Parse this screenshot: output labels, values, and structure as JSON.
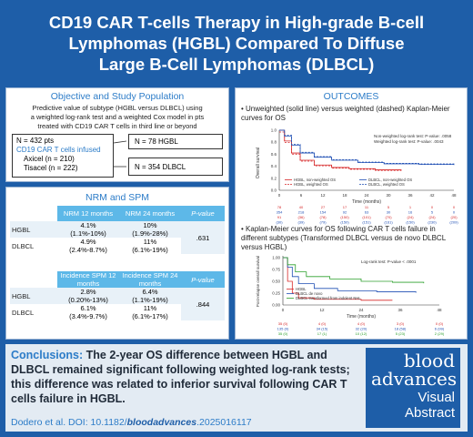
{
  "title": {
    "line1": "CD19 CAR T-cells Therapy in High-grade B-cell",
    "line2": "Lymphomas (HGBL) Compared To Diffuse",
    "line3": "Large B-Cell Lymphomas (DLBCL)"
  },
  "objective": {
    "heading": "Objective and Study Population",
    "text1": "Predictive value of subtype (HGBL versus DLBCL) using",
    "text2": "a weighted log-rank test and a weighted Cox model in pts",
    "text3": "treated with CD19 CAR T cells in third line or beyond",
    "n_total": "N = 432 pts",
    "infused_label": "CD19 CAR T cells infused",
    "axicel": "Axicel (n = 210)",
    "tisacel": "Tisacel (n = 222)",
    "n_hgbl": "N = 78 HGBL",
    "n_dlbcl": "N = 354 DLBCL"
  },
  "nrm_spm": {
    "heading": "NRM and SPM",
    "nrm_headers": [
      "NRM 12 months",
      "NRM 24 months",
      "P-value"
    ],
    "nrm_rows": [
      {
        "label": "HGBL",
        "v12": "4.1%",
        "ci12": "(1.1%-10%)",
        "v24": "10%",
        "ci24": "(1.9%-28%)",
        "p": ".631"
      },
      {
        "label": "DLBCL",
        "v12": "4.9%",
        "ci12": "(2.4%-8.7%)",
        "v24": "11%",
        "ci24": "(6.1%-19%)",
        "p": ""
      }
    ],
    "spm_headers": [
      "Incidence SPM 12 months",
      "Incidence SPM 24 months",
      "P-value"
    ],
    "spm_rows": [
      {
        "label": "HGBL",
        "v12": "2.8%",
        "ci12": "(0.20%-13%)",
        "v24": "6.4%",
        "ci24": "(1.1%-19%)",
        "p": ".844"
      },
      {
        "label": "DLBCL",
        "v12": "6.1%",
        "ci12": "(3.4%-9.7%)",
        "v24": "11%",
        "ci24": "(6.1%-17%)",
        "p": ""
      }
    ]
  },
  "outcomes": {
    "heading": "OUTCOMES",
    "bullet1": "Unweighted (solid line) versus weighted (dashed) Kaplan-Meier curves for OS",
    "bullet2": "Kaplan-Meier curves for OS following CAR T cells failure in different subtypes (Transformed DLBCL versus de novo DLBCL versus HGBL)",
    "plot1_note1": "Non-weighted log-rank test: P-value: .0058",
    "plot1_note2": "Weighted log-rank test: P-value: .0043",
    "plot1_ylabel": "Overall survival",
    "plot1_xlabel": "Time (months)",
    "plot1_xticks": [
      "0",
      "6",
      "12",
      "18",
      "24",
      "30",
      "36",
      "42",
      "48"
    ],
    "plot1_yticks": [
      "0.0",
      "0.2",
      "0.4",
      "0.6",
      "0.8",
      "1.0"
    ],
    "plot1_legend": [
      "HGBL, non-weighted OS",
      "DLBCL, non-weighted OS",
      "HGBL, weighted OS",
      "DLBCL, weighted OS"
    ],
    "plot1_risk_rows": [
      [
        "78",
        "40",
        "27",
        "17",
        "11",
        "5",
        "1",
        "0",
        "0"
      ],
      [
        "354",
        "218",
        "154",
        "92",
        "63",
        "30",
        "16",
        "5",
        "0"
      ],
      [
        "91",
        "(36)",
        "(78)",
        "(150)",
        "(101)",
        "(70)",
        "(24)",
        "(24)",
        "(20)"
      ],
      [
        "(30)",
        "(39)",
        "(79)",
        "(150)",
        "(151)",
        "(161)",
        "(150)",
        "(230)",
        "(209)"
      ]
    ],
    "plot2_note": "Log-rank test: P-value < .0001",
    "plot2_ylabel": "Post-relapse overall survival",
    "plot2_xlabel": "Time (months)",
    "plot2_xticks": [
      "0",
      "12",
      "24",
      "36",
      "48"
    ],
    "plot2_yticks": [
      "0.00",
      "0.25",
      "0.50",
      "0.75",
      "1.00"
    ],
    "plot2_legend": [
      "HGBL",
      "DLBCL de novo",
      "DLBCL transformed from indolent NHL"
    ],
    "plot2_risk_rows": [
      [
        "35 (0)",
        "4 (0)",
        "4 (0)",
        "3 (0)",
        "0 (0)"
      ],
      [
        "135 (0)",
        "34 (15)",
        "32 (20)",
        "18 (58)",
        "6 (99)"
      ],
      [
        "35 (0)",
        "17 (1)",
        "10 (12)",
        "5 (23)",
        "2 (29)"
      ]
    ]
  },
  "colors": {
    "frame": "#1e5ea8",
    "accent": "#2c7cc8",
    "header_cell": "#5db8e8",
    "hgbl_curve": "#d62728",
    "dlbcl_curve": "#1f4fb4",
    "transformed_curve": "#2ca02c"
  },
  "conclusion": {
    "lead": "Conclusions:",
    "text": "The 2-year OS difference between HGBL and DLBCL remained significant following weighted log-rank tests; this difference was related to inferior survival following CAR T cells failure in HGBL."
  },
  "citation": {
    "prefix": "Dodero et al. DOI: 10.1182/",
    "bold": "bloodadvances",
    "suffix": ".2025016117"
  },
  "logo": {
    "line1": "blood",
    "line2": "advances",
    "line3": "Visual",
    "line4": "Abstract"
  }
}
